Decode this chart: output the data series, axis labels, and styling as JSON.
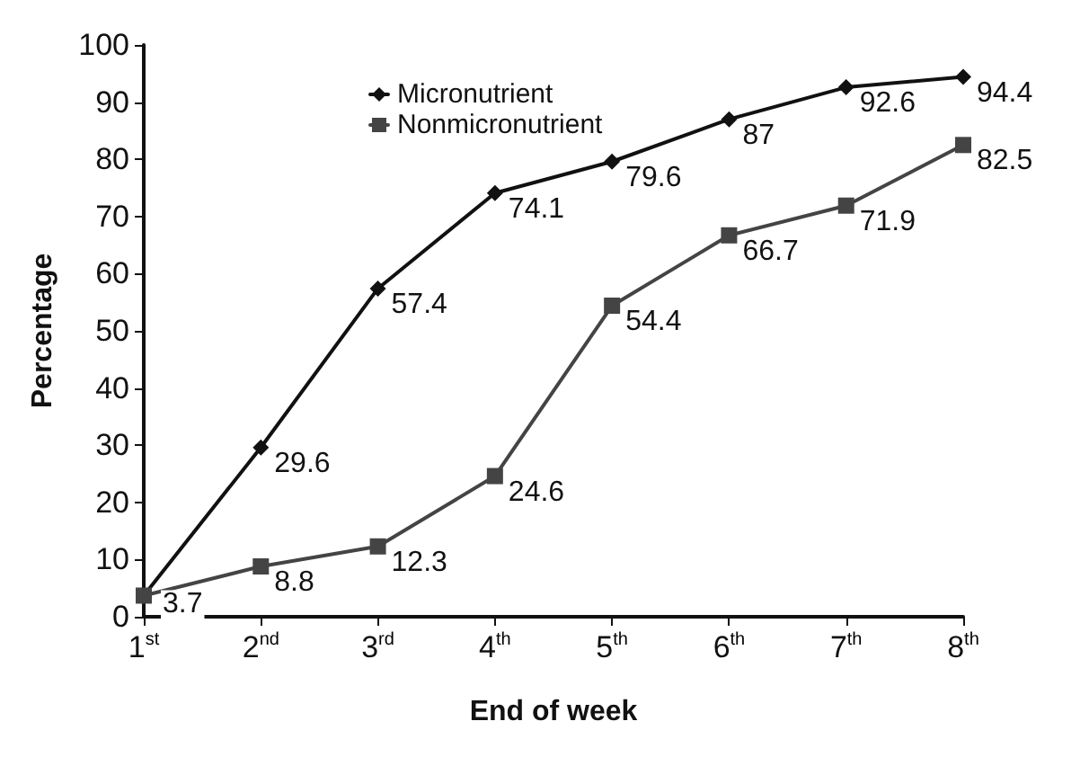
{
  "chart_data": {
    "type": "line",
    "xlabel": "End of week",
    "ylabel": "Percentage",
    "categories": [
      "1$^{st}$",
      "2$^{nd}$",
      "3$^{rd}$",
      "4$^{th}$",
      "5$^{th}$",
      "6$^{th}$",
      "7$^{th}$",
      "8$^{th}$"
    ],
    "series": [
      {
        "name": "Micronutrient",
        "color": "#111111",
        "marker": "diamond",
        "values": [
          3.7,
          29.6,
          57.4,
          74.1,
          79.6,
          87,
          92.6,
          94.4
        ],
        "value_labels": [
          "3.7",
          "29.6",
          "57.4",
          "74.1",
          "79.6",
          "87",
          "92.6",
          "94.4"
        ]
      },
      {
        "name": "Nonmicronutrient",
        "color": "#444444",
        "marker": "square",
        "values": [
          3.7,
          8.8,
          12.3,
          24.6,
          54.4,
          66.7,
          71.9,
          82.5
        ],
        "value_labels": [
          null,
          "8.8",
          "12.3",
          "24.6",
          "54.4",
          "66.7",
          "71.9",
          "82.5"
        ]
      }
    ],
    "ylim": [
      0,
      100
    ],
    "yticks": [
      0,
      10,
      20,
      30,
      40,
      50,
      60,
      70,
      80,
      90,
      100
    ],
    "grid": false,
    "legend": "top left",
    "line_style": "solid"
  }
}
